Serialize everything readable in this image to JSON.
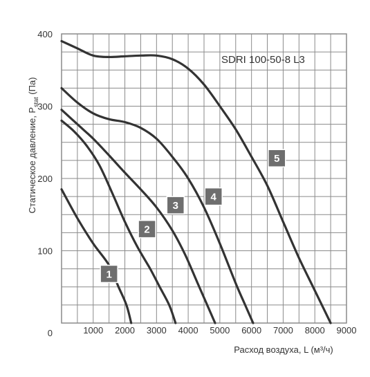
{
  "chart_data": {
    "type": "line",
    "title": "SDRI 100-50-8 L3",
    "xlabel": "Расход воздуха, L (м³/ч)",
    "ylabel_main": "Статическое давление, P",
    "ylabel_sub": "stat",
    "ylabel_tail": " (Па)",
    "xlim": [
      0,
      9000
    ],
    "ylim": [
      0,
      400
    ],
    "x_ticks": [
      "0",
      "1000",
      "2000",
      "3000",
      "4000",
      "5000",
      "6000",
      "7000",
      "8000",
      "9000"
    ],
    "y_ticks": [
      "0",
      "100",
      "200",
      "300",
      "400"
    ],
    "x_minor_step": 500,
    "y_minor_step": 25,
    "grid": true,
    "series": [
      {
        "name": "1",
        "points": [
          [
            0,
            185
          ],
          [
            500,
            145
          ],
          [
            1000,
            110
          ],
          [
            1500,
            80
          ],
          [
            1800,
            50
          ],
          [
            2050,
            25
          ],
          [
            2200,
            0
          ]
        ]
      },
      {
        "name": "2",
        "points": [
          [
            0,
            280
          ],
          [
            400,
            265
          ],
          [
            800,
            245
          ],
          [
            1200,
            218
          ],
          [
            1600,
            180
          ],
          [
            2000,
            140
          ],
          [
            2400,
            105
          ],
          [
            2800,
            75
          ],
          [
            3100,
            50
          ],
          [
            3400,
            25
          ],
          [
            3600,
            0
          ]
        ]
      },
      {
        "name": "3",
        "points": [
          [
            0,
            295
          ],
          [
            500,
            275
          ],
          [
            1000,
            255
          ],
          [
            1500,
            232
          ],
          [
            2000,
            208
          ],
          [
            2500,
            185
          ],
          [
            3000,
            160
          ],
          [
            3500,
            128
          ],
          [
            3900,
            95
          ],
          [
            4300,
            55
          ],
          [
            4600,
            25
          ],
          [
            4850,
            0
          ]
        ]
      },
      {
        "name": "4",
        "points": [
          [
            0,
            325
          ],
          [
            500,
            305
          ],
          [
            1000,
            290
          ],
          [
            1500,
            282
          ],
          [
            2000,
            278
          ],
          [
            2500,
            270
          ],
          [
            3000,
            255
          ],
          [
            3500,
            230
          ],
          [
            4000,
            200
          ],
          [
            4500,
            160
          ],
          [
            5000,
            110
          ],
          [
            5500,
            55
          ],
          [
            5800,
            25
          ],
          [
            6050,
            0
          ]
        ]
      },
      {
        "name": "5",
        "points": [
          [
            0,
            390
          ],
          [
            500,
            380
          ],
          [
            1000,
            370
          ],
          [
            1500,
            368
          ],
          [
            2000,
            369
          ],
          [
            2500,
            370
          ],
          [
            3000,
            370
          ],
          [
            3500,
            365
          ],
          [
            4000,
            352
          ],
          [
            4500,
            330
          ],
          [
            5000,
            300
          ],
          [
            5500,
            268
          ],
          [
            6000,
            230
          ],
          [
            6500,
            190
          ],
          [
            7000,
            140
          ],
          [
            7500,
            90
          ],
          [
            8000,
            45
          ],
          [
            8500,
            0
          ]
        ]
      }
    ],
    "badges": [
      {
        "label": "1",
        "x": 1500,
        "y": 68
      },
      {
        "label": "2",
        "x": 2700,
        "y": 130
      },
      {
        "label": "3",
        "x": 3600,
        "y": 163
      },
      {
        "label": "4",
        "x": 4800,
        "y": 175
      },
      {
        "label": "5",
        "x": 6800,
        "y": 228
      }
    ],
    "colors": {
      "curve": "#333333",
      "badge_fill": "#6e6e6e",
      "badge_border": "#ffffff",
      "grid": "#8a8a8a",
      "frame": "#8a8a8a"
    }
  }
}
